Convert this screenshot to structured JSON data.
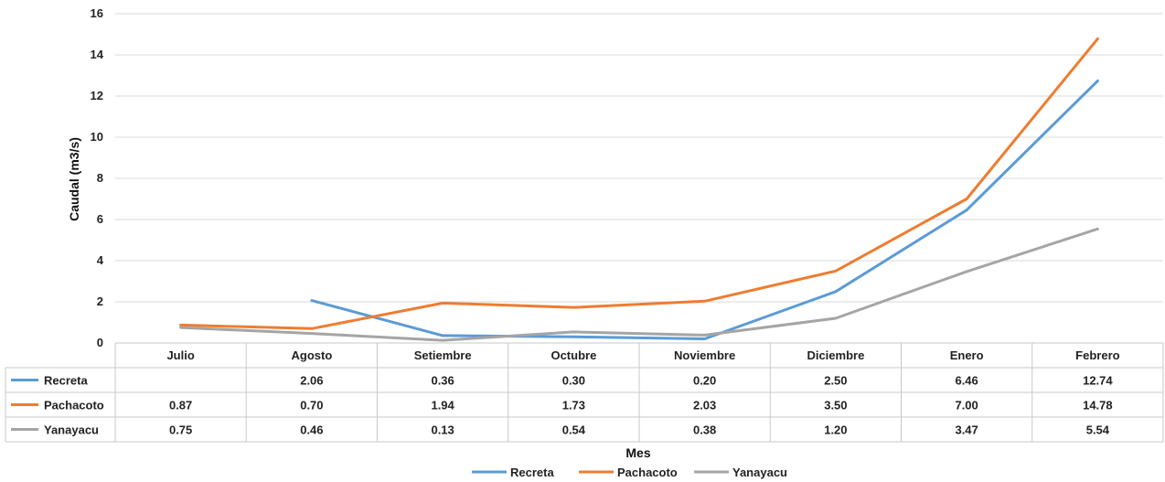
{
  "chart_data": {
    "type": "line",
    "categories": [
      "Julio",
      "Agosto",
      "Setiembre",
      "Octubre",
      "Noviembre",
      "Diciembre",
      "Enero",
      "Febrero"
    ],
    "series": [
      {
        "name": "Recreta",
        "color": "#5b9bd5",
        "values": [
          null,
          2.06,
          0.36,
          0.3,
          0.2,
          2.5,
          6.46,
          12.74
        ],
        "labels": [
          "",
          "2.06",
          "0.36",
          "0.30",
          "0.20",
          "2.50",
          "6.46",
          "12.74"
        ]
      },
      {
        "name": "Pachacoto",
        "color": "#ed7d31",
        "values": [
          0.87,
          0.7,
          1.94,
          1.73,
          2.03,
          3.5,
          7.0,
          14.78
        ],
        "labels": [
          "0.87",
          "0.70",
          "1.94",
          "1.73",
          "2.03",
          "3.50",
          "7.00",
          "14.78"
        ]
      },
      {
        "name": "Yanayacu",
        "color": "#a5a5a5",
        "values": [
          0.75,
          0.46,
          0.13,
          0.54,
          0.38,
          1.2,
          3.47,
          5.54
        ],
        "labels": [
          "0.75",
          "0.46",
          "0.13",
          "0.54",
          "0.38",
          "1.20",
          "3.47",
          "5.54"
        ]
      }
    ],
    "title": "",
    "xlabel": "Mes",
    "ylabel": "Caudal (m3/s)",
    "ylim": [
      0,
      16
    ],
    "yticks": [
      "0",
      "2",
      "4",
      "6",
      "8",
      "10",
      "12",
      "14",
      "16"
    ],
    "grid": true,
    "legend_position": "bottom",
    "data_table": true
  }
}
